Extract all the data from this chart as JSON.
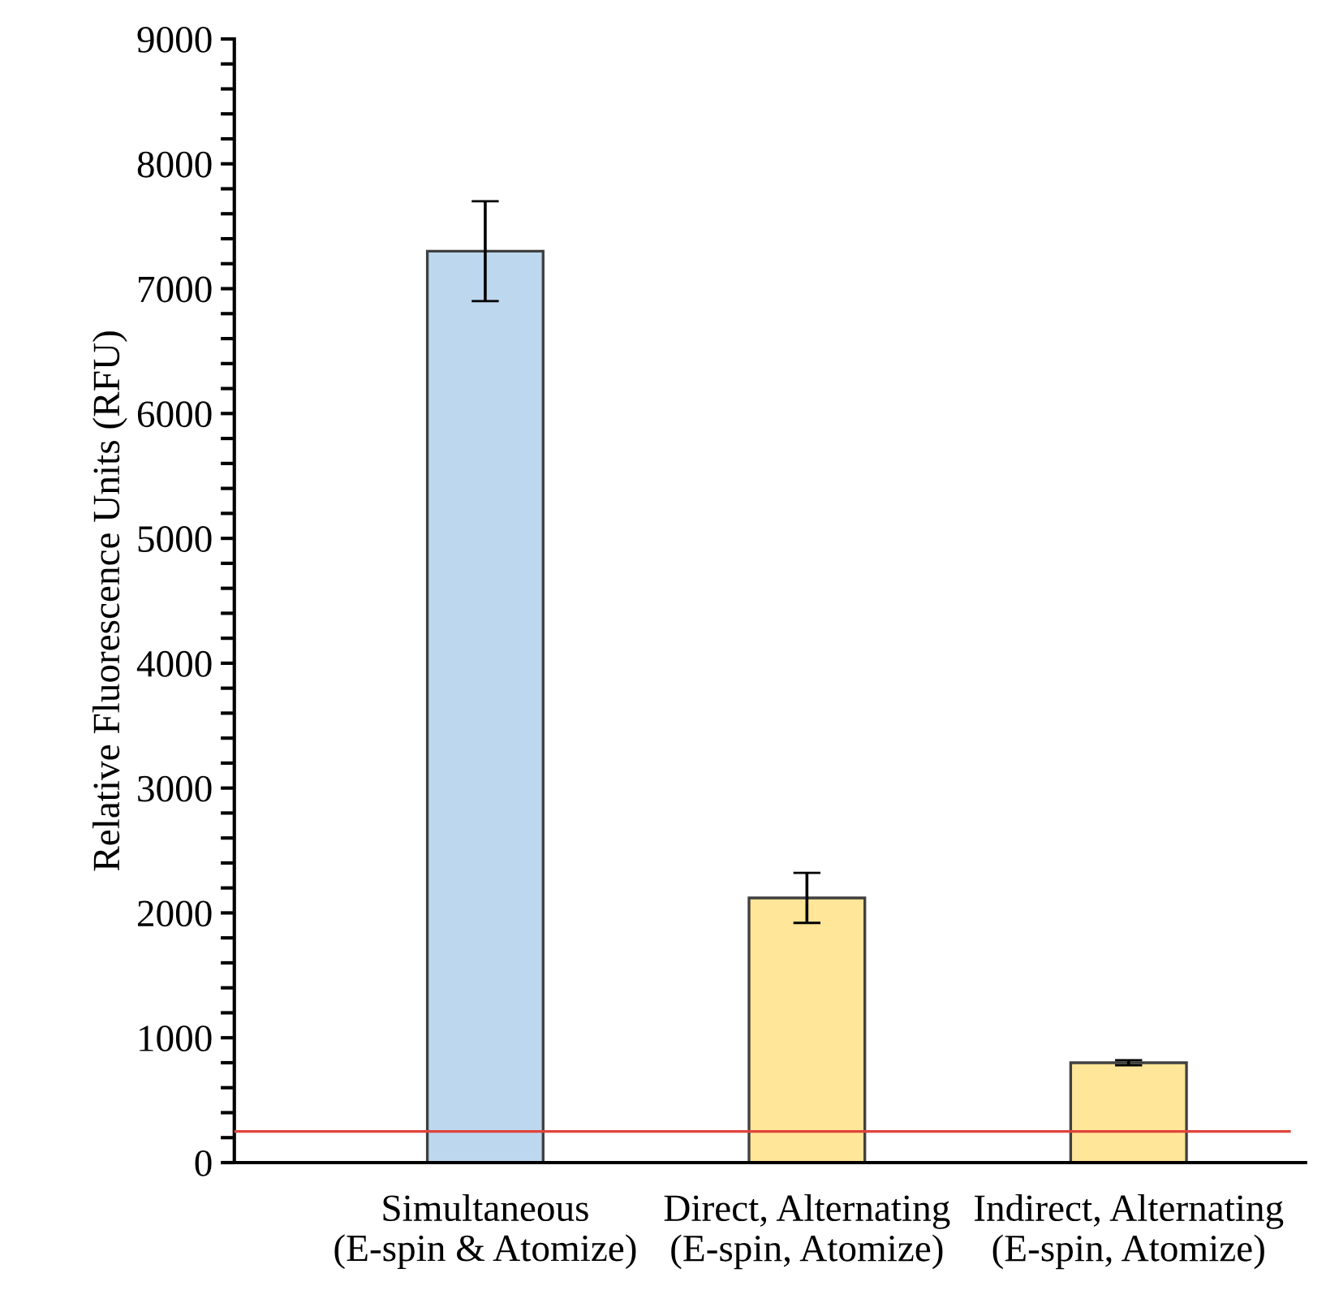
{
  "chart_data": {
    "type": "bar",
    "ylabel": "Relative Fluorescence Units (RFU)",
    "categories": [
      "Simultaneous\n(E-spin & Atomize)",
      "Direct, Alternating\n(E-spin, Atomize)",
      "Indirect, Alternating\n(E-spin, Atomize)"
    ],
    "values": [
      7300,
      2120,
      800
    ],
    "errors": [
      400,
      200,
      20
    ],
    "colors": [
      "#bdd7ee",
      "#ffe699",
      "#ffe699"
    ],
    "ylim": [
      0,
      9000
    ],
    "yticks": [
      0,
      {
        "value": 200,
        "label": null
      },
      {
        "value": 400,
        "label": null
      },
      {
        "value": 600,
        "label": null
      },
      {
        "value": 800,
        "label": null
      },
      1000,
      {
        "value": 1200,
        "label": null
      },
      {
        "value": 1400,
        "label": null
      },
      {
        "value": 1600,
        "label": null
      },
      {
        "value": 1800,
        "label": null
      },
      2000,
      {
        "value": 2200,
        "label": null
      },
      {
        "value": 2400,
        "label": null
      },
      {
        "value": 2600,
        "label": null
      },
      {
        "value": 2800,
        "label": null
      },
      3000,
      {
        "value": 3200,
        "label": null
      },
      {
        "value": 3400,
        "label": null
      },
      {
        "value": 3600,
        "label": null
      },
      {
        "value": 3800,
        "label": null
      },
      4000,
      {
        "value": 4200,
        "label": null
      },
      {
        "value": 4400,
        "label": null
      },
      {
        "value": 4600,
        "label": null
      },
      {
        "value": 4800,
        "label": null
      },
      5000,
      {
        "value": 5200,
        "label": null
      },
      {
        "value": 5400,
        "label": null
      },
      {
        "value": 5600,
        "label": null
      },
      {
        "value": 5800,
        "label": null
      },
      6000,
      {
        "value": 6200,
        "label": null
      },
      {
        "value": 6400,
        "label": null
      },
      {
        "value": 6600,
        "label": null
      },
      {
        "value": 6800,
        "label": null
      },
      7000,
      {
        "value": 7200,
        "label": null
      },
      {
        "value": 7400,
        "label": null
      },
      {
        "value": 7600,
        "label": null
      },
      {
        "value": 7800,
        "label": null
      },
      8000,
      {
        "value": 8200,
        "label": null
      },
      {
        "value": 8400,
        "label": null
      },
      {
        "value": 8600,
        "label": null
      },
      {
        "value": 8800,
        "label": null
      },
      9000
    ],
    "ref_lines": [
      {
        "axis": "y",
        "value": 250,
        "color": "#e0443c"
      }
    ],
    "grid": false,
    "legend": false
  }
}
